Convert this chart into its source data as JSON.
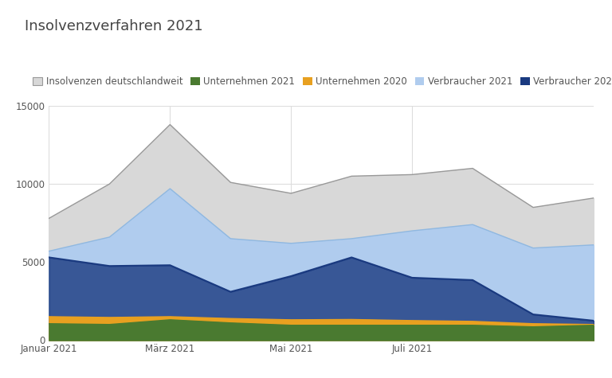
{
  "title": "Insolvenzverfahren 2021",
  "xtick_labels": [
    "Januar 2021",
    "März 2021",
    "Mai 2021",
    "Juli 2021"
  ],
  "insolvenzen_deutschlandweit": [
    7800,
    10000,
    13800,
    10100,
    9400,
    10500,
    10600,
    11000,
    8500,
    9100
  ],
  "unternehmen_2021": [
    1050,
    1000,
    1300,
    1100,
    950,
    950,
    950,
    950,
    850,
    950
  ],
  "unternehmen_2020": [
    1500,
    1450,
    1500,
    1380,
    1300,
    1320,
    1250,
    1200,
    1050,
    1000
  ],
  "verbraucher_2021": [
    5700,
    6600,
    9700,
    6500,
    6200,
    6500,
    7000,
    7400,
    5900,
    6100
  ],
  "verbraucher_2020": [
    5300,
    4750,
    4800,
    3100,
    4100,
    5300,
    4000,
    3850,
    1650,
    1250
  ],
  "color_insolvenzen_fill": "#d8d8d8",
  "color_insolvenzen_line": "#999999",
  "color_unternehmen_2021": "#4a7a30",
  "color_unternehmen_2020": "#e8a020",
  "color_verbraucher_2021": "#b0ccee",
  "color_verbraucher_2021_line": "#90b8e0",
  "color_verbraucher_2020": "#1a3a80",
  "ylim": [
    0,
    15000
  ],
  "yticks": [
    0,
    5000,
    10000,
    15000
  ],
  "background_color": "#ffffff",
  "title_fontsize": 13,
  "legend_fontsize": 8.5,
  "tick_fontsize": 8.5
}
